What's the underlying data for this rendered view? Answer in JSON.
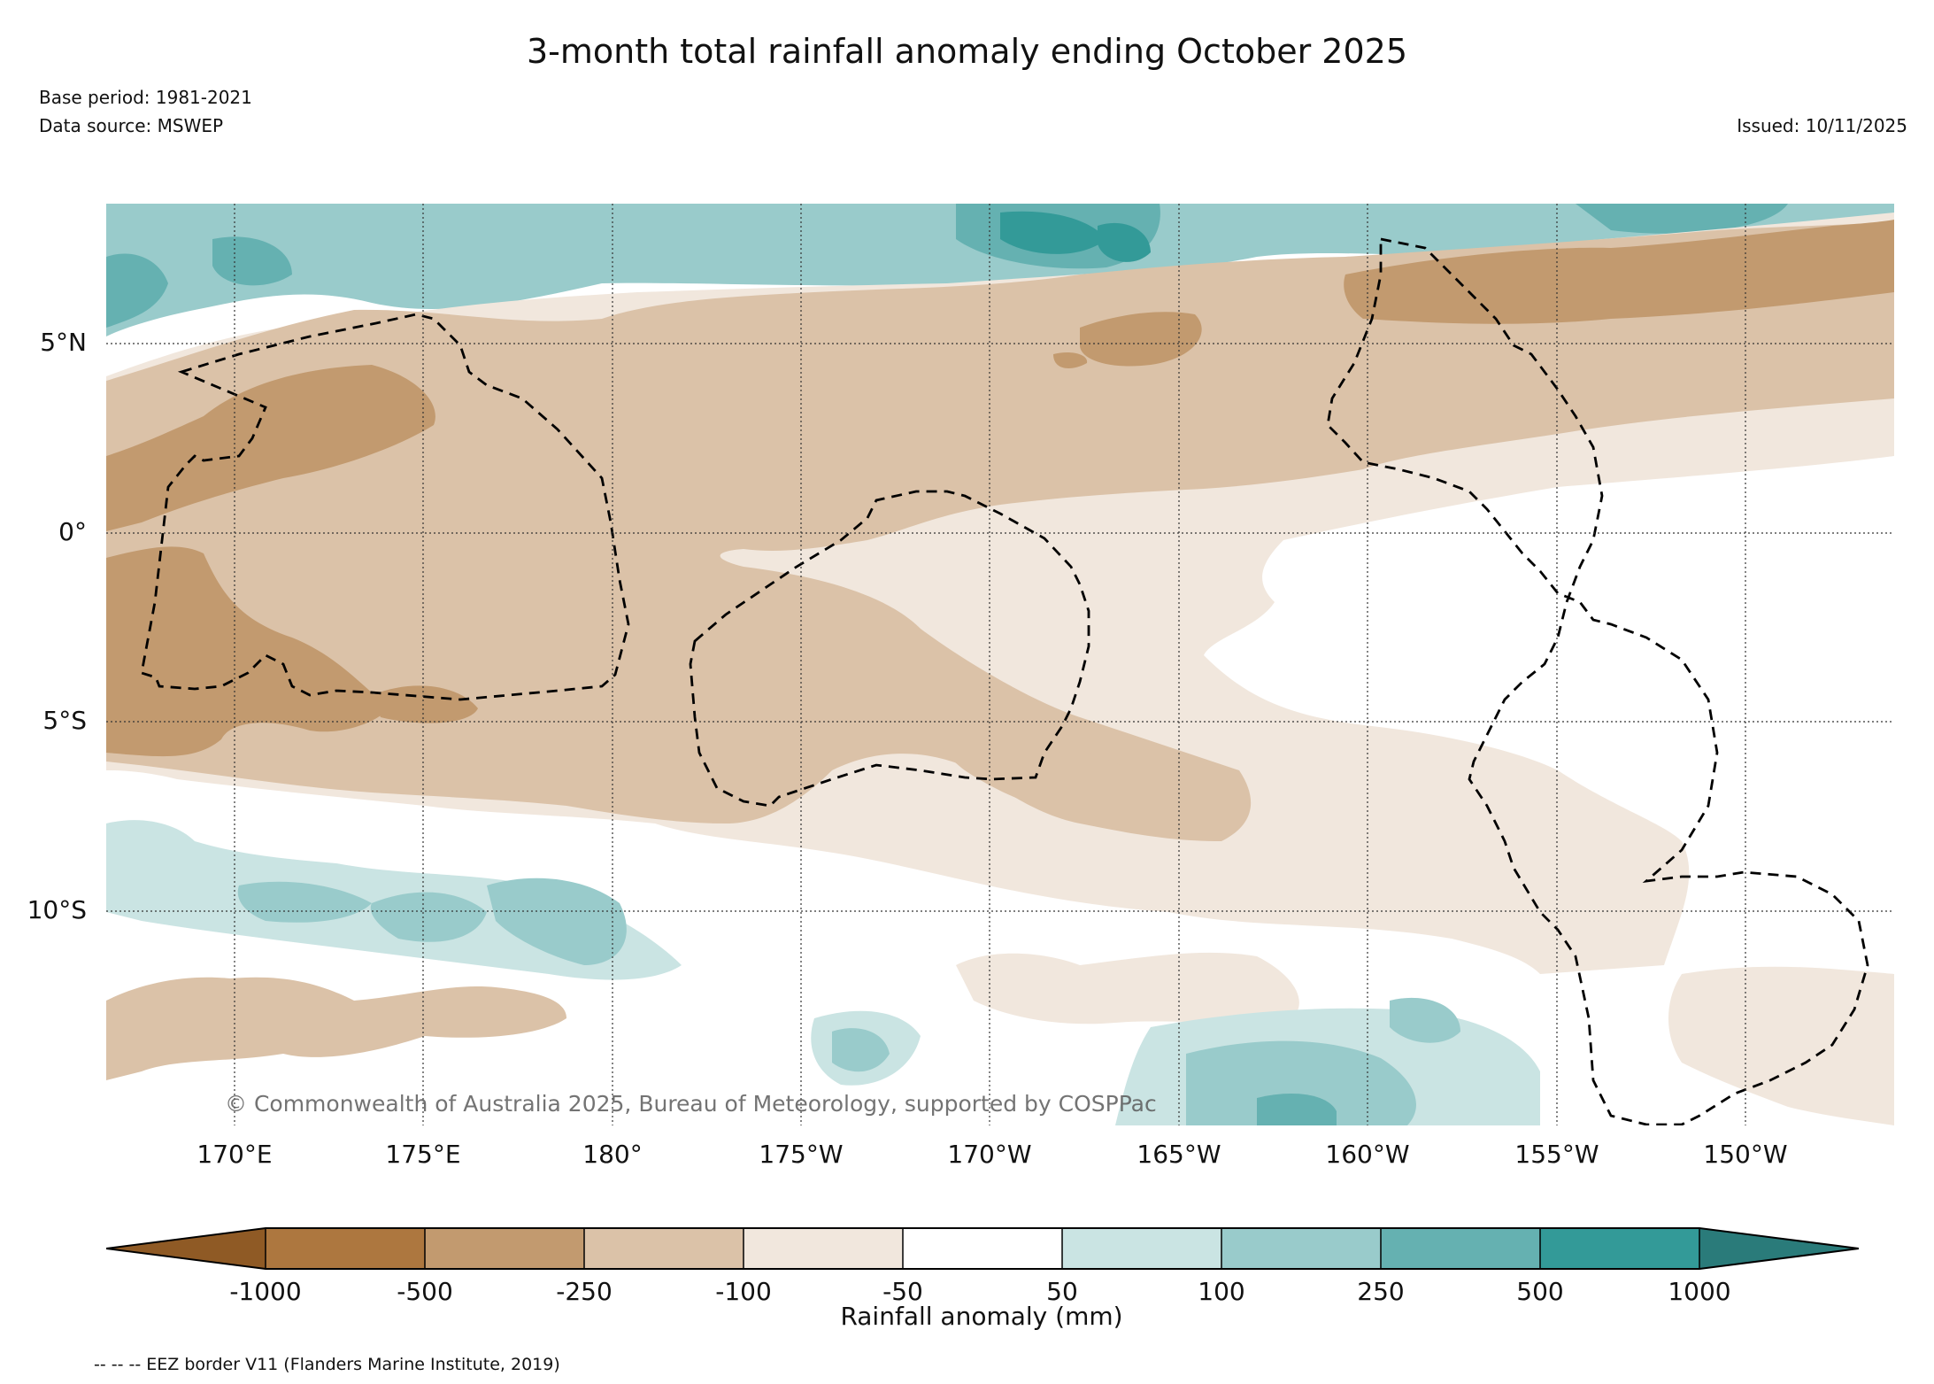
{
  "header": {
    "title": "3-month total rainfall anomaly ending October 2025",
    "base_period": "Base period: 1981-2021",
    "data_source": "Data source: MSWEP",
    "issued": "Issued: 10/11/2025"
  },
  "map": {
    "lat_labels": [
      "5°N",
      "0°",
      "5°S",
      "10°S"
    ],
    "lon_labels": [
      "170°E",
      "175°E",
      "180°",
      "175°W",
      "170°W",
      "165°W",
      "160°W",
      "155°W",
      "150°W"
    ],
    "copyright": "© Commonwealth of Australia 2025, Bureau of Meteorology, supported by COSPPac",
    "grid": "dotted"
  },
  "colorbar": {
    "title": "Rainfall anomaly (mm)",
    "ticks": [
      "-1000",
      "-500",
      "-250",
      "-100",
      "-50",
      "50",
      "100",
      "250",
      "500",
      "1000"
    ],
    "colors": {
      "lt_m1000": "#8f5a25",
      "m1000_m500": "#ad773f",
      "m500_m250": "#c29a6f",
      "m250_m100": "#dbc2a8",
      "m100_m50": "#f1e7dd",
      "m50_50": "#ffffff",
      "50_100": "#cae4e3",
      "100_250": "#99cbcb",
      "250_500": "#65b1b1",
      "500_1000": "#339a98",
      "gt_1000": "#2a7b7a"
    }
  },
  "legend_note": "-- -- -- EEZ border V11 (Flanders Marine Institute, 2019)"
}
